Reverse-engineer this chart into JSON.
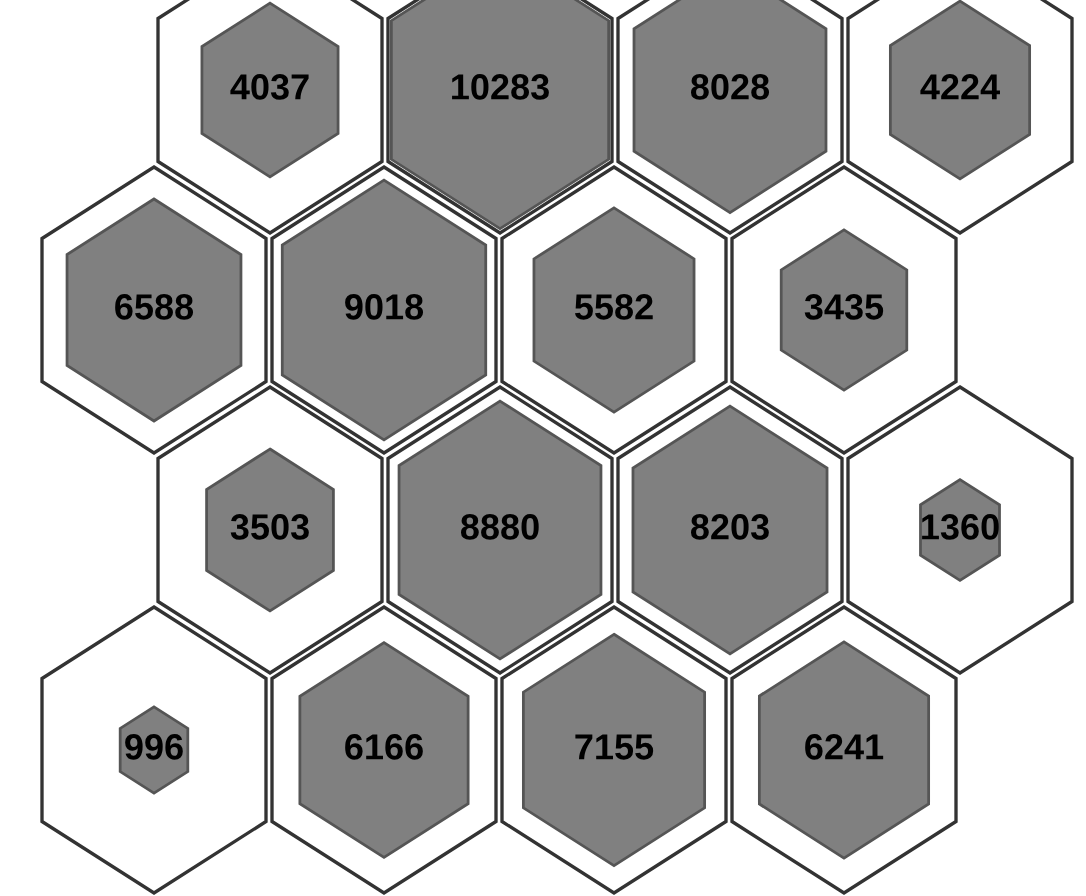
{
  "chart_data": {
    "type": "other",
    "categories": [
      null,
      null,
      null,
      null,
      null,
      null,
      null,
      null,
      null,
      null,
      null,
      null,
      null,
      null,
      null,
      null
    ],
    "values": [
      4037,
      10283,
      8028,
      4224,
      6588,
      9018,
      5582,
      3435,
      3503,
      8880,
      8203,
      1360,
      996,
      6166,
      7155,
      6241
    ],
    "color": "#808080",
    "data_labels": true
  }
}
